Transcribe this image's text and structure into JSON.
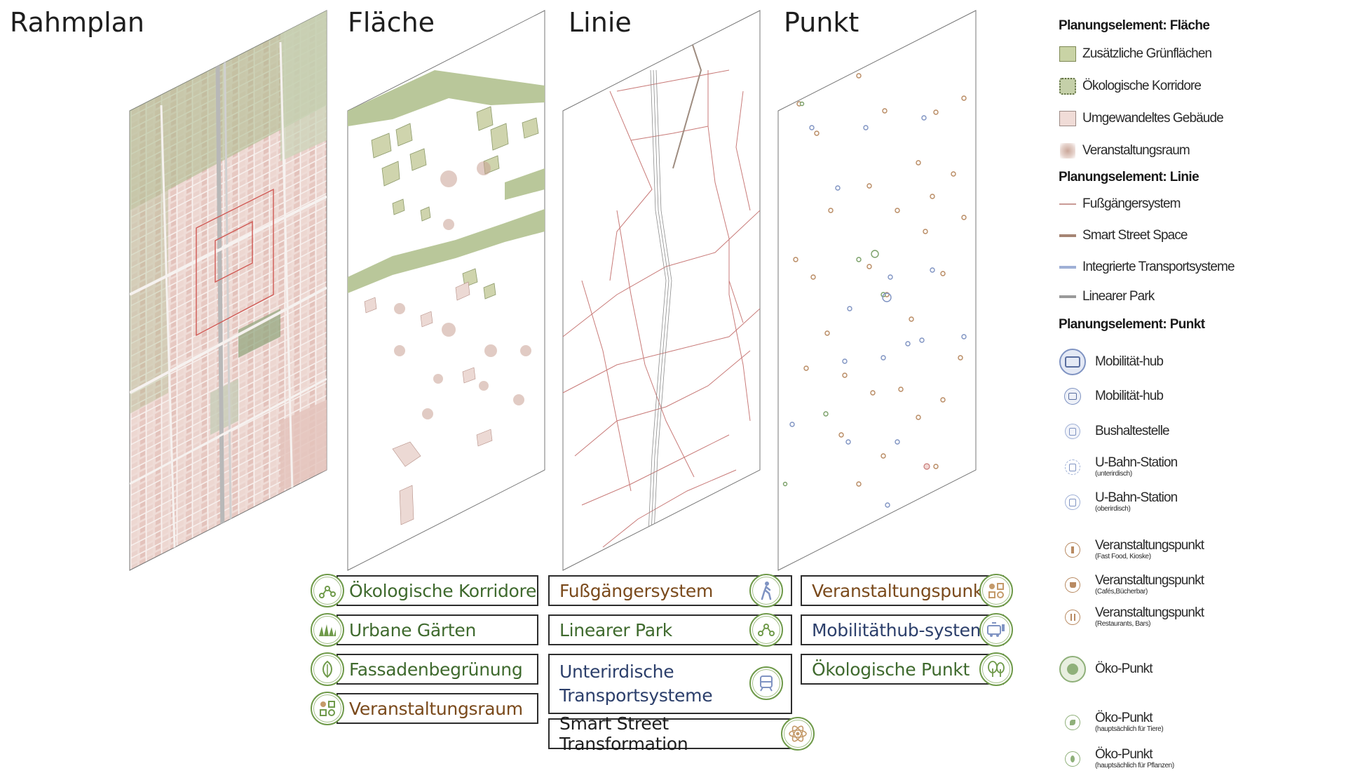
{
  "panels": {
    "rahmplan": "Rahmplan",
    "flaeche": "Fläche",
    "linie": "Linie",
    "punkt": "Punkt"
  },
  "legend": {
    "flaeche_header": "Planungselement: Fläche",
    "flaeche_items": [
      "Zusätzliche Grünflächen",
      "Ökologische Korridore",
      "Umgewandeltes Gebäude",
      "Veranstaltungsraum"
    ],
    "linie_header": "Planungselement: Linie",
    "linie_items": [
      "Fußgängersystem",
      "Smart Street Space",
      "Integrierte Transportsysteme",
      "Linearer Park"
    ],
    "punkt_header": "Planungselement: Punkt",
    "punkt_items": [
      {
        "label": "Mobilität-hub",
        "sub": ""
      },
      {
        "label": "Mobilität-hub",
        "sub": ""
      },
      {
        "label": "Bushaltestelle",
        "sub": ""
      },
      {
        "label": "U-Bahn-Station",
        "sub": "(unterirdisch)"
      },
      {
        "label": "U-Bahn-Station",
        "sub": "(oberirdisch)"
      },
      {
        "label": "Veranstaltungspunkt",
        "sub": "(Fast Food, Kioske)"
      },
      {
        "label": "Veranstaltungspunkt",
        "sub": "(Cafés,Bücherbar)"
      },
      {
        "label": "Veranstaltungspunkt",
        "sub": "(Restaurants, Bars)"
      },
      {
        "label": "Öko-Punkt",
        "sub": ""
      },
      {
        "label": "Öko-Punkt",
        "sub": "(hauptsächlich für Tiere)"
      },
      {
        "label": "Öko-Punkt",
        "sub": "(hauptsächlich für Pflanzen)"
      }
    ]
  },
  "boxes": {
    "col1": [
      "Ökologische Korridore",
      "Urbane Gärten",
      "Fassadenbegrünung",
      "Veranstaltungsraum"
    ],
    "col2": [
      "Fußgängersystem",
      "Linearer Park",
      "Unterirdische Transportsysteme",
      "Smart Street Transformation"
    ],
    "col3": [
      "Veranstaltungspunkt",
      "Mobilitäthub-system",
      "Ökologische Punkt"
    ]
  },
  "colors": {
    "green": "#3f6a2e",
    "brown": "#7a4a1c",
    "blue": "#2c3f6b",
    "street": "#c87a78",
    "green_area": "#b9c79a",
    "building": "#e8cfc9"
  },
  "icons": {
    "col1": [
      "nodes-icon",
      "grass-icon",
      "leaf-icon",
      "shapes-icon"
    ],
    "col2": [
      "pedestrian-icon",
      "nodes-icon",
      "tram-icon",
      "atom-icon"
    ],
    "col3": [
      "shapes-icon",
      "bus-charger-icon",
      "trees-icon"
    ]
  }
}
